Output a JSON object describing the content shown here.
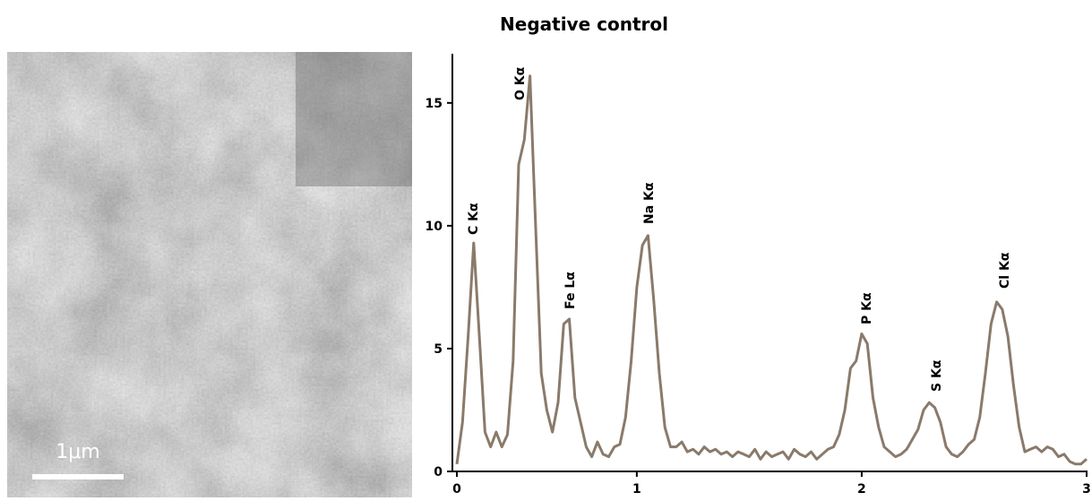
{
  "chart_data": {
    "type": "line",
    "title": "Negative control",
    "x": [
      0.2,
      0.225,
      0.25,
      0.275,
      0.3,
      0.325,
      0.35,
      0.375,
      0.4,
      0.425,
      0.45,
      0.475,
      0.5,
      0.525,
      0.55,
      0.575,
      0.6,
      0.625,
      0.65,
      0.675,
      0.7,
      0.725,
      0.75,
      0.775,
      0.8,
      0.825,
      0.85,
      0.875,
      0.9,
      0.925,
      0.95,
      0.975,
      1.0,
      1.025,
      1.05,
      1.075,
      1.1,
      1.125,
      1.15,
      1.175,
      1.2,
      1.225,
      1.25,
      1.275,
      1.3,
      1.325,
      1.35,
      1.375,
      1.4,
      1.425,
      1.45,
      1.475,
      1.5,
      1.525,
      1.55,
      1.575,
      1.6,
      1.625,
      1.65,
      1.675,
      1.7,
      1.725,
      1.75,
      1.775,
      1.8,
      1.825,
      1.85,
      1.875,
      1.9,
      1.925,
      1.95,
      1.975,
      2.0,
      2.025,
      2.05,
      2.075,
      2.1,
      2.125,
      2.15,
      2.175,
      2.2,
      2.225,
      2.25,
      2.275,
      2.3,
      2.325,
      2.35,
      2.375,
      2.4,
      2.425,
      2.45,
      2.475,
      2.5,
      2.525,
      2.55,
      2.575,
      2.6,
      2.625,
      2.65,
      2.675,
      2.7,
      2.725,
      2.75,
      2.775,
      2.8,
      2.825,
      2.85,
      2.875,
      2.9,
      2.925,
      2.95,
      2.975,
      3.0
    ],
    "series": [
      {
        "color": "#8a7a6a",
        "values": [
          0.3,
          2.0,
          5.5,
          9.3,
          5.5,
          1.6,
          1.0,
          1.6,
          1.0,
          1.5,
          4.5,
          12.5,
          13.5,
          16.1,
          10.0,
          4.0,
          2.5,
          1.6,
          2.8,
          6.0,
          6.2,
          3.0,
          2.0,
          1.0,
          0.6,
          1.2,
          0.7,
          0.6,
          1.0,
          1.1,
          2.2,
          4.5,
          7.5,
          9.2,
          9.6,
          7.0,
          4.0,
          1.8,
          1.0,
          1.0,
          1.2,
          0.8,
          0.9,
          0.7,
          1.0,
          0.8,
          0.9,
          0.7,
          0.8,
          0.6,
          0.8,
          0.7,
          0.6,
          0.9,
          0.5,
          0.8,
          0.6,
          0.7,
          0.8,
          0.5,
          0.9,
          0.7,
          0.6,
          0.8,
          0.5,
          0.7,
          0.9,
          1.0,
          1.5,
          2.5,
          4.2,
          4.5,
          5.6,
          5.2,
          3.0,
          1.8,
          1.0,
          0.8,
          0.6,
          0.7,
          0.9,
          1.3,
          1.7,
          2.5,
          2.8,
          2.6,
          2.0,
          1.0,
          0.7,
          0.6,
          0.8,
          1.1,
          1.3,
          2.2,
          4.0,
          6.0,
          6.9,
          6.6,
          5.5,
          3.5,
          1.8,
          0.8,
          0.9,
          1.0,
          0.8,
          1.0,
          0.9,
          0.6,
          0.7,
          0.4,
          0.3,
          0.3,
          0.5
        ]
      }
    ],
    "xlim": [
      0.2,
      3
    ],
    "xticks": [
      {
        "value": 0.2,
        "label": "0"
      },
      1,
      2,
      3
    ],
    "ylim": [
      0,
      17
    ],
    "yticks": [
      0,
      5,
      10,
      15
    ],
    "annotations": [
      "C Kα",
      "O Kα",
      "Fe Lα",
      "Na Kα",
      "P Kα",
      "S Kα",
      "Cl Kα"
    ]
  },
  "image": {
    "scale_bar_label": "1μm"
  }
}
